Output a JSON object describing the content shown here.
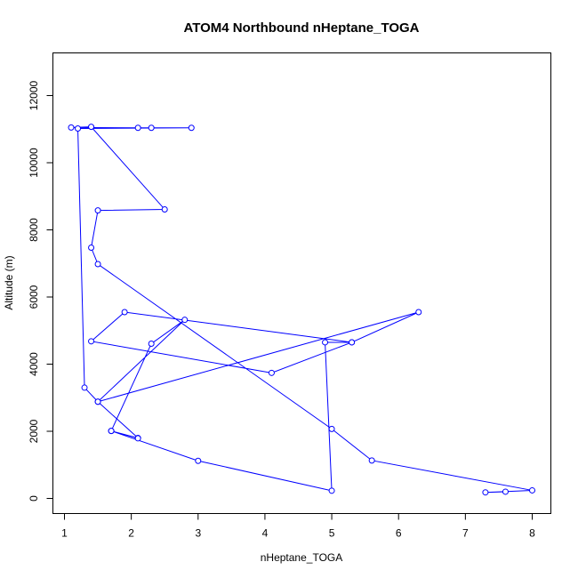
{
  "chart_data": {
    "type": "line",
    "title": "ATOM4 Northbound nHeptane_TOGA",
    "xlabel": "nHeptane_TOGA",
    "ylabel": "Altitude (m)",
    "xlim": [
      1.0,
      8.0
    ],
    "ylim": [
      0,
      12000
    ],
    "x_ticks": [
      1,
      2,
      3,
      4,
      5,
      6,
      7,
      8
    ],
    "y_ticks": [
      0,
      2000,
      4000,
      6000,
      8000,
      10000,
      12000
    ],
    "x_tick_labels": [
      "1",
      "2",
      "3",
      "4",
      "5",
      "6",
      "7",
      "8"
    ],
    "y_tick_labels": [
      "0",
      "2000",
      "4000",
      "6000",
      "8000",
      "10000",
      "12000"
    ],
    "legend": "none",
    "grid": false,
    "series": [
      {
        "color": "#0000ff",
        "x": [
          7.6,
          7.3,
          8.0,
          5.6,
          5.0,
          1.5,
          1.4,
          1.5,
          2.5,
          1.4,
          1.1,
          2.1,
          2.3,
          2.9,
          1.2,
          1.3,
          1.5,
          2.1,
          1.7,
          2.3,
          2.8,
          1.5,
          6.3,
          5.3,
          4.1,
          1.4,
          1.9,
          5.3,
          4.9,
          5.0,
          3.0,
          1.7,
          2.1
        ],
        "y": [
          200,
          180,
          240,
          1130,
          2070,
          6980,
          7470,
          8580,
          8610,
          11070,
          11050,
          11040,
          11040,
          11040,
          11020,
          3300,
          2880,
          1800,
          2010,
          4610,
          5320,
          2880,
          5550,
          4650,
          3740,
          4680,
          5550,
          4650,
          4650,
          230,
          1120,
          2010,
          1790
        ],
        "label_note": ""
      }
    ]
  }
}
